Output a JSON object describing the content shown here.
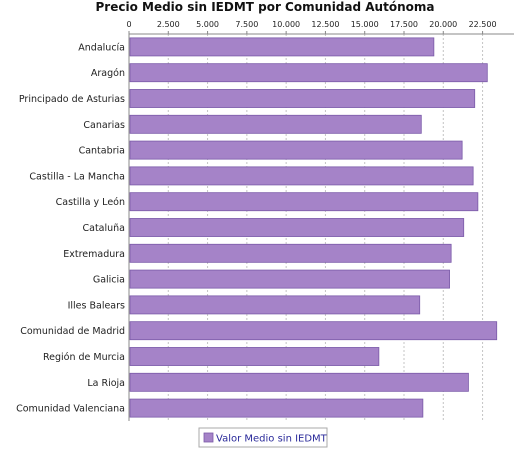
{
  "chart_data": {
    "type": "bar",
    "orientation": "horizontal",
    "title": "Precio Medio sin IEDMT por Comunidad Autónoma",
    "categories": [
      "Andalucía",
      "Aragón",
      "Principado de Asturias",
      "Canarias",
      "Cantabria",
      "Castilla - La Mancha",
      "Castilla y León",
      "Cataluña",
      "Extremadura",
      "Galicia",
      "Illes Balears",
      "Comunidad de Madrid",
      "Región de Murcia",
      "La Rioja",
      "Comunidad Valenciana"
    ],
    "series": [
      {
        "name": "Valor Medio sin IEDMT",
        "color": "#a583c8",
        "values": [
          19400,
          22800,
          22000,
          18600,
          21200,
          21900,
          22200,
          21300,
          20500,
          20400,
          18500,
          23400,
          15900,
          21600,
          18700
        ]
      }
    ],
    "xlim": [
      0,
      24500
    ],
    "xticks": [
      0,
      2500,
      5000,
      7500,
      10000,
      12500,
      15000,
      17500,
      20000,
      22500
    ],
    "xtick_labels": [
      "0",
      "2.500",
      "5.000",
      "7.500",
      "10.000",
      "12.500",
      "15.000",
      "17.500",
      "20.000",
      "22.500"
    ],
    "grid": true,
    "legend_position": "bottom"
  }
}
